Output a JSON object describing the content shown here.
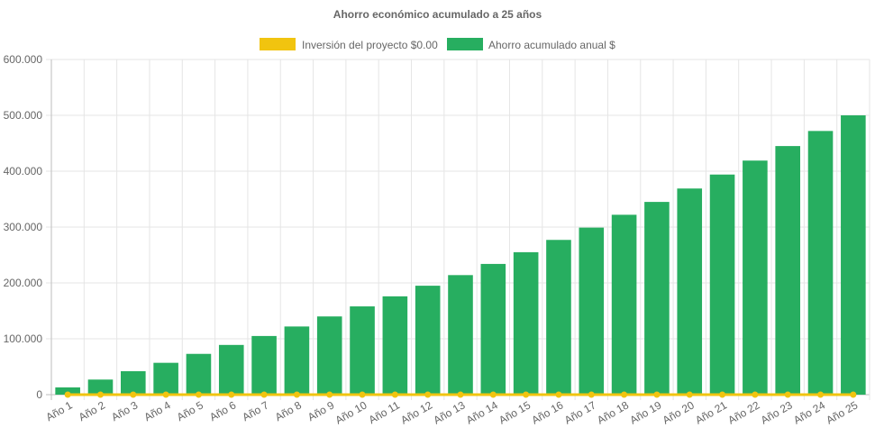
{
  "chart_data": {
    "type": "bar",
    "title": "Ahorro económico acumulado a 25 años",
    "categories": [
      "Año 1",
      "Año 2",
      "Año 3",
      "Año 4",
      "Año 5",
      "Año 6",
      "Año 7",
      "Año 8",
      "Año 9",
      "Año 10",
      "Año 11",
      "Año 12",
      "Año 13",
      "Año 14",
      "Año 15",
      "Año 16",
      "Año 17",
      "Año 18",
      "Año 19",
      "Año 20",
      "Año 21",
      "Año 22",
      "Año 23",
      "Año 24",
      "Año 25"
    ],
    "series": [
      {
        "name": "Inversión del proyecto $0.00",
        "type": "line",
        "color": "#f1c40f",
        "values": [
          0,
          0,
          0,
          0,
          0,
          0,
          0,
          0,
          0,
          0,
          0,
          0,
          0,
          0,
          0,
          0,
          0,
          0,
          0,
          0,
          0,
          0,
          0,
          0,
          0
        ]
      },
      {
        "name": "Ahorro acumulado anual $",
        "type": "bar",
        "color": "#27ae60",
        "values": [
          13000,
          27000,
          42000,
          57000,
          73000,
          89000,
          105000,
          122000,
          140000,
          158000,
          176000,
          195000,
          214000,
          234000,
          255000,
          277000,
          299000,
          322000,
          345000,
          369000,
          394000,
          419000,
          445000,
          472000,
          500000
        ]
      }
    ],
    "ylim": [
      0,
      600000
    ],
    "yticks": [
      0,
      100000,
      200000,
      300000,
      400000,
      500000,
      600000
    ],
    "ytick_labels": [
      "0",
      "100.000",
      "200.000",
      "300.000",
      "400.000",
      "500.000",
      "600.000"
    ],
    "grid": true,
    "legend_position": "top"
  }
}
